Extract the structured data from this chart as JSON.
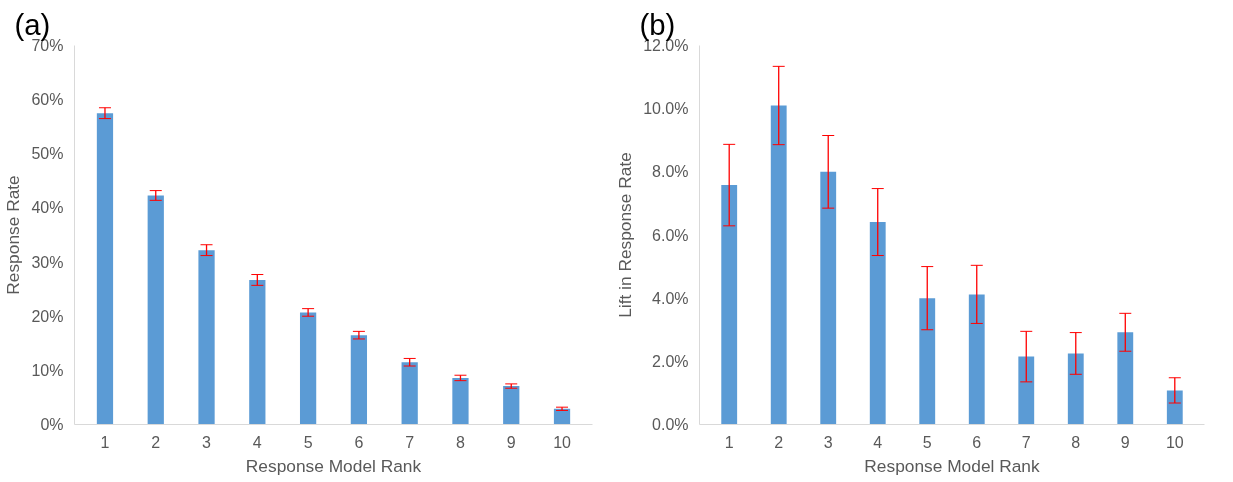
{
  "chart_data": [
    {
      "type": "bar",
      "title": "(a)",
      "xlabel": "Response Model Rank",
      "ylabel": "Response Rate",
      "categories": [
        "1",
        "2",
        "3",
        "4",
        "5",
        "6",
        "7",
        "8",
        "9",
        "10"
      ],
      "color": "#5b9bd5",
      "values": [
        57.5,
        42.3,
        32.2,
        26.7,
        20.7,
        16.5,
        11.5,
        8.6,
        7.1,
        2.9
      ],
      "errors": [
        1.0,
        0.9,
        1.0,
        1.0,
        0.7,
        0.7,
        0.7,
        0.5,
        0.4,
        0.3
      ],
      "ylim": [
        0,
        70
      ],
      "yticks": [
        {
          "value": 0,
          "label": "0%"
        },
        {
          "value": 10,
          "label": "10%"
        },
        {
          "value": 20,
          "label": "20%"
        },
        {
          "value": 30,
          "label": "30%"
        },
        {
          "value": 40,
          "label": "40%"
        },
        {
          "value": 50,
          "label": "50%"
        },
        {
          "value": 60,
          "label": "60%"
        },
        {
          "value": 70,
          "label": "70%"
        }
      ],
      "grid": false,
      "legend": false
    },
    {
      "type": "bar",
      "title": "(b)",
      "xlabel": "Response Model Rank",
      "ylabel": "Lift in Response Rate",
      "categories": [
        "1",
        "2",
        "3",
        "4",
        "5",
        "6",
        "7",
        "8",
        "9",
        "10"
      ],
      "color": "#5b9bd5",
      "values": [
        7.58,
        10.1,
        8.0,
        6.41,
        4.0,
        4.12,
        2.15,
        2.25,
        2.92,
        1.08
      ],
      "errors": [
        1.29,
        1.24,
        1.15,
        1.06,
        1.0,
        0.92,
        0.8,
        0.66,
        0.6,
        0.4
      ],
      "ylim": [
        0,
        12
      ],
      "yticks": [
        {
          "value": 0,
          "label": "0.0%"
        },
        {
          "value": 2,
          "label": "2.0%"
        },
        {
          "value": 4,
          "label": "4.0%"
        },
        {
          "value": 6,
          "label": "6.0%"
        },
        {
          "value": 8,
          "label": "8.0%"
        },
        {
          "value": 10,
          "label": "10.0%"
        },
        {
          "value": 12,
          "label": "12.0%"
        }
      ],
      "grid": false,
      "legend": false
    }
  ]
}
